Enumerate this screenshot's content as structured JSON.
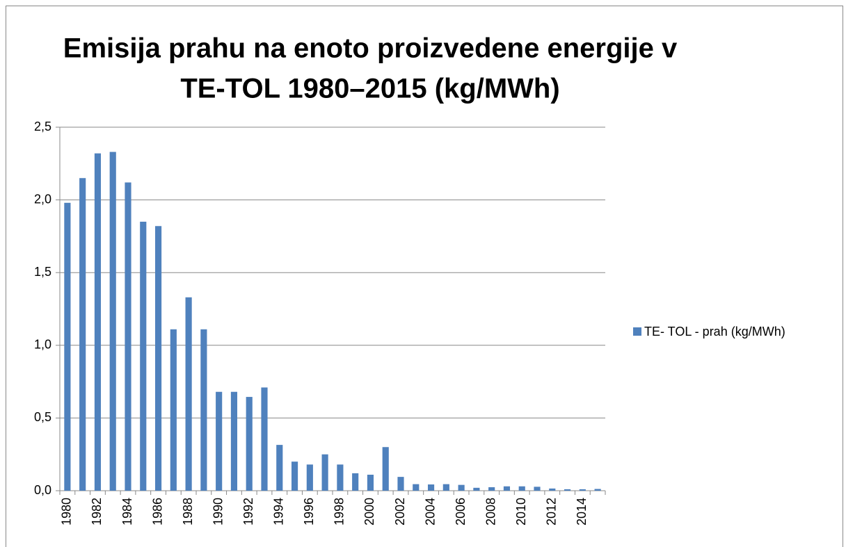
{
  "chart_data": {
    "type": "bar",
    "title": [
      "Emisija prahu na enoto proizvedene energije v",
      "TE-TOL 1980–2015 (kg/MWh)"
    ],
    "categories": [
      "1980",
      null,
      "1982",
      null,
      "1984",
      null,
      "1986",
      null,
      "1988",
      null,
      "1990",
      null,
      "1992",
      null,
      "1994",
      null,
      "1996",
      null,
      "1998",
      null,
      "2000",
      null,
      "2002",
      null,
      "2004",
      null,
      "2006",
      null,
      "2008",
      null,
      "2010",
      null,
      "2012",
      null,
      "2014",
      null
    ],
    "series": [
      {
        "name": "TE- TOL - prah (kg/MWh)",
        "color": "#4f81bd",
        "values": [
          1.98,
          2.15,
          2.32,
          2.33,
          2.12,
          1.85,
          1.82,
          1.11,
          1.33,
          1.11,
          0.68,
          0.68,
          0.645,
          0.71,
          0.315,
          0.2,
          0.18,
          0.25,
          0.18,
          0.12,
          0.11,
          0.3,
          0.095,
          0.045,
          0.043,
          0.045,
          0.04,
          0.02,
          0.024,
          0.03,
          0.03,
          0.027,
          0.015,
          0.01,
          0.01,
          0.012
        ]
      }
    ],
    "ylim": [
      0,
      2.5
    ],
    "yticks": [
      {
        "value": 0,
        "label": "0,0"
      },
      {
        "value": 0.5,
        "label": "0,5"
      },
      {
        "value": 1,
        "label": "1,0"
      },
      {
        "value": 1.5,
        "label": "1,5"
      },
      {
        "value": 2,
        "label": "2,0"
      },
      {
        "value": 2.5,
        "label": "2,5"
      }
    ],
    "grid": true,
    "legend": "right"
  }
}
